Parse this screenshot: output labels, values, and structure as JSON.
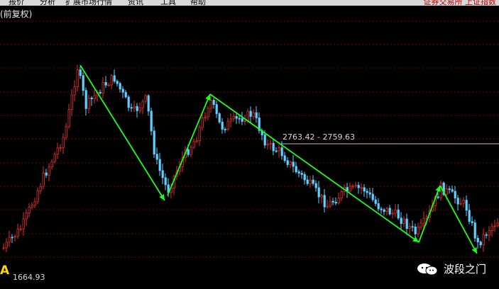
{
  "menu": {
    "items": [
      "报价",
      "分析",
      "扩展市场行情",
      "资讯",
      "工具",
      "帮助"
    ],
    "right_text": "证券交易所 上证指数"
  },
  "chart_title": "(前复权)",
  "annotation": {
    "label": "2763.42 - 2759.63"
  },
  "marker_label": "A",
  "low_label": "1664.93",
  "watermark": {
    "text": "波段之门",
    "icon": "wechat-icon"
  },
  "colors": {
    "up": "#e03030",
    "down": "#5fd0ff",
    "arrow": "#19ff19",
    "grid": "#7a0000",
    "marker": "#ffd800"
  },
  "chart_data": {
    "type": "candlestick",
    "swing_points": [
      {
        "name": "start",
        "price": 1664.93
      },
      {
        "name": "peak-1"
      },
      {
        "name": "trough-1"
      },
      {
        "name": "peak-2"
      },
      {
        "name": "trough-2"
      },
      {
        "name": "peak-3"
      },
      {
        "name": "trough-3"
      }
    ],
    "horizontal_level": "2763.42 - 2759.63"
  }
}
